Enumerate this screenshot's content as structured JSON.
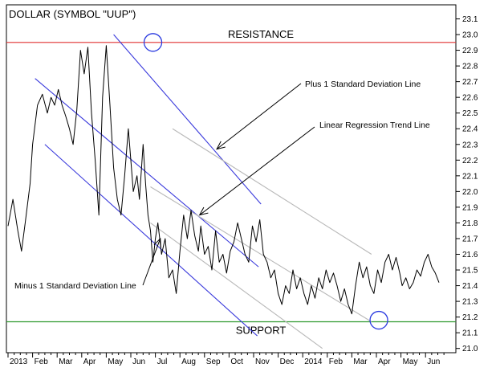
{
  "chart_data": {
    "type": "line",
    "title": "DOLLAR (SYMBOL \"UUP\")",
    "x_labels": [
      "2013",
      "Feb",
      "Mar",
      "Apr",
      "May",
      "Jun",
      "Jul",
      "Aug",
      "Sep",
      "Oct",
      "Nov",
      "Dec",
      "2014",
      "Feb",
      "Mar",
      "Apr",
      "May",
      "Jun"
    ],
    "ylim": [
      21.0,
      23.1
    ],
    "y_ticks": [
      21.0,
      21.1,
      21.2,
      21.3,
      21.4,
      21.5,
      21.6,
      21.7,
      21.8,
      21.9,
      22.0,
      22.1,
      22.2,
      22.3,
      22.4,
      22.5,
      22.6,
      22.7,
      22.8,
      22.9,
      23.0,
      23.1
    ],
    "y_axis_side": "right",
    "grid": false,
    "series": [
      {
        "x_months": [
          0.0,
          0.2,
          0.4,
          0.55,
          0.7,
          0.9,
          1.0,
          1.2,
          1.4,
          1.6,
          1.75,
          1.9,
          2.05,
          2.2,
          2.35,
          2.5,
          2.65,
          2.8,
          2.95,
          3.1,
          3.25,
          3.4,
          3.55,
          3.7,
          3.85,
          4.0,
          4.15,
          4.3,
          4.45,
          4.6,
          4.75,
          4.9,
          5.0,
          5.1,
          5.25,
          5.35,
          5.5,
          5.6,
          5.7,
          5.8,
          5.9,
          6.0,
          6.1,
          6.25,
          6.4,
          6.55,
          6.7,
          6.85,
          7.0,
          7.15,
          7.3,
          7.45,
          7.6,
          7.75,
          7.85,
          8.0,
          8.15,
          8.3,
          8.45,
          8.6,
          8.75,
          8.9,
          9.05,
          9.2,
          9.35,
          9.5,
          9.65,
          9.8,
          9.95,
          10.1,
          10.25,
          10.4,
          10.55,
          10.7,
          10.85,
          11.0,
          11.15,
          11.3,
          11.45,
          11.6,
          11.75,
          11.9,
          12.05,
          12.2,
          12.35,
          12.5,
          12.65,
          12.8,
          12.95,
          13.1,
          13.25,
          13.4,
          13.55,
          13.7,
          13.85,
          14.0,
          14.15,
          14.3,
          14.45,
          14.6,
          14.75,
          14.9,
          15.05,
          15.2,
          15.35,
          15.5,
          15.65,
          15.8,
          15.95,
          16.05,
          16.2,
          16.35,
          16.5,
          16.65,
          16.8,
          16.95,
          17.1,
          17.25,
          17.4,
          17.55
        ],
        "values": [
          21.78,
          21.95,
          21.75,
          21.62,
          21.8,
          22.05,
          22.3,
          22.55,
          22.62,
          22.5,
          22.6,
          22.55,
          22.65,
          22.55,
          22.48,
          22.4,
          22.3,
          22.52,
          22.9,
          22.75,
          22.92,
          22.5,
          22.2,
          21.85,
          22.6,
          22.93,
          22.55,
          22.15,
          21.95,
          21.85,
          22.1,
          22.4,
          22.2,
          22.0,
          22.1,
          21.95,
          22.3,
          22.05,
          21.85,
          21.75,
          21.55,
          21.7,
          21.8,
          21.6,
          21.7,
          21.45,
          21.5,
          21.35,
          21.62,
          21.85,
          21.7,
          21.88,
          21.72,
          21.62,
          21.78,
          21.6,
          21.65,
          21.5,
          21.75,
          21.55,
          21.6,
          21.48,
          21.62,
          21.68,
          21.8,
          21.7,
          21.6,
          21.55,
          21.78,
          21.68,
          21.82,
          21.6,
          21.55,
          21.45,
          21.5,
          21.35,
          21.28,
          21.4,
          21.35,
          21.5,
          21.38,
          21.45,
          21.35,
          21.28,
          21.4,
          21.32,
          21.45,
          21.38,
          21.5,
          21.42,
          21.48,
          21.4,
          21.3,
          21.38,
          21.28,
          21.22,
          21.4,
          21.55,
          21.45,
          21.52,
          21.4,
          21.35,
          21.5,
          21.42,
          21.55,
          21.6,
          21.5,
          21.58,
          21.48,
          21.4,
          21.45,
          21.38,
          21.42,
          21.5,
          21.46,
          21.55,
          21.6,
          21.52,
          21.48,
          21.42
        ]
      }
    ],
    "reference_lines": [
      {
        "label": "RESISTANCE",
        "value": 22.95,
        "color": "#e03030"
      },
      {
        "label": "SUPPORT",
        "value": 21.17,
        "color": "#2e9a2e"
      }
    ],
    "channel_lines": [
      {
        "name": "plus1",
        "color": "#3a3adc",
        "x": [
          4.3,
          10.3
        ],
        "y": [
          23.0,
          21.92
        ]
      },
      {
        "name": "regression",
        "color": "#3a3adc",
        "x": [
          1.1,
          10.2
        ],
        "y": [
          22.72,
          21.52
        ]
      },
      {
        "name": "minus1",
        "color": "#3a3adc",
        "x": [
          1.5,
          10.15
        ],
        "y": [
          22.3,
          21.08
        ]
      },
      {
        "name": "plus1-ext",
        "color": "#b8b8b8",
        "x": [
          6.7,
          14.8
        ],
        "y": [
          22.4,
          21.6
        ]
      },
      {
        "name": "regression-ext",
        "color": "#b8b8b8",
        "x": [
          5.8,
          14.8
        ],
        "y": [
          22.03,
          21.17
        ]
      },
      {
        "name": "minus1-ext",
        "color": "#b8b8b8",
        "x": [
          5.8,
          12.8
        ],
        "y": [
          21.8,
          21.0
        ]
      }
    ],
    "annotations": [
      {
        "text": "Plus 1 Standard Deviation Line",
        "arrow_to": [
          8.5,
          22.27
        ]
      },
      {
        "text": "Linear Regression Trend Line",
        "arrow_to": [
          7.8,
          21.85
        ]
      },
      {
        "text": "Minus 1 Standard Deviation Line",
        "arrow_to": [
          6.2,
          21.7
        ]
      }
    ],
    "circles": [
      {
        "x": 5.9,
        "y": 22.95
      },
      {
        "x": 15.1,
        "y": 21.18
      }
    ]
  }
}
